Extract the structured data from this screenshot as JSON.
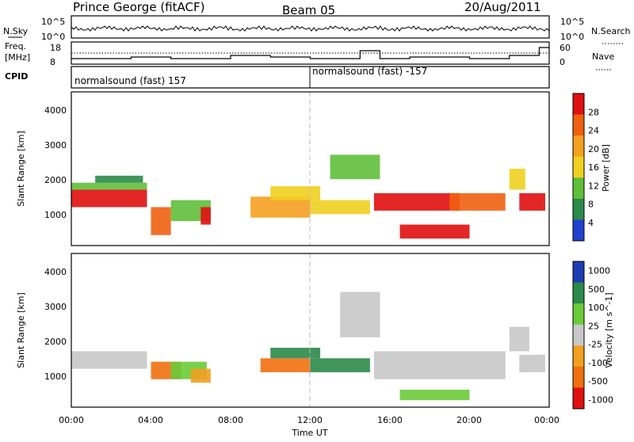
{
  "header": {
    "station": "Prince George (fitACF)",
    "beam": "Beam 05",
    "date": "20/Aug/2011"
  },
  "top_panels": {
    "nsky_label": "N.Sky",
    "nsky_ticks": [
      "10^5",
      "10^0"
    ],
    "nsearch_label": "N.Search",
    "nsearch_ticks": [
      "10^5",
      "10^0"
    ],
    "freq_label": "Freq.",
    "freq_unit": "[MHz]",
    "freq_ticks": [
      "18",
      "8"
    ],
    "nave_label": "Nave",
    "nave_ticks": [
      "60",
      "0"
    ],
    "cpid_label": "CPID",
    "cpid_segments": [
      "normalsound (fast) 157",
      "normalsound (fast) -157"
    ]
  },
  "x_axis": {
    "label": "Time UT",
    "ticks": [
      "00:00",
      "04:00",
      "08:00",
      "12:00",
      "16:00",
      "20:00",
      "00:00"
    ]
  },
  "colors": {
    "power": [
      "#2040d0",
      "#2a8a4a",
      "#5fbf3a",
      "#f0d020",
      "#f5a020",
      "#f06010",
      "#e01010"
    ],
    "velocity": [
      "#1e3cb4",
      "#2b8a4a",
      "#6acb3a",
      "#c8c8c8",
      "#f0a020",
      "#f07010",
      "#e01010"
    ]
  },
  "chart_data": [
    {
      "type": "heatmap",
      "name": "Power",
      "ylabel": "Slant Range [km]",
      "xlabel": "",
      "yticks": [
        "1000",
        "2000",
        "3000",
        "4000"
      ],
      "ylim": [
        200,
        4600
      ],
      "xlim_hours": [
        0,
        24
      ],
      "colorbar_label": "Power [dB]",
      "colorbar_ticks": [
        "4",
        "8",
        "12",
        "16",
        "20",
        "24",
        "28"
      ],
      "bands": [
        {
          "t0": 0.0,
          "t1": 3.8,
          "r0": 1300,
          "r1": 1800,
          "level": 6
        },
        {
          "t0": 0.0,
          "t1": 3.8,
          "r0": 1800,
          "r1": 2000,
          "level": 2
        },
        {
          "t0": 1.2,
          "t1": 3.6,
          "r0": 2000,
          "r1": 2200,
          "level": 1
        },
        {
          "t0": 4.0,
          "t1": 5.0,
          "r0": 500,
          "r1": 1300,
          "level": 5
        },
        {
          "t0": 5.0,
          "t1": 7.0,
          "r0": 900,
          "r1": 1500,
          "level": 2
        },
        {
          "t0": 6.5,
          "t1": 7.0,
          "r0": 800,
          "r1": 1300,
          "level": 6
        },
        {
          "t0": 9.0,
          "t1": 12.0,
          "r0": 1000,
          "r1": 1600,
          "level": 4
        },
        {
          "t0": 10.0,
          "t1": 12.5,
          "r0": 1500,
          "r1": 1900,
          "level": 3
        },
        {
          "t0": 12.0,
          "t1": 15.0,
          "r0": 1100,
          "r1": 1500,
          "level": 3
        },
        {
          "t0": 13.0,
          "t1": 15.5,
          "r0": 2100,
          "r1": 2800,
          "level": 2
        },
        {
          "t0": 15.2,
          "t1": 19.5,
          "r0": 1200,
          "r1": 1700,
          "level": 6
        },
        {
          "t0": 16.5,
          "t1": 20.0,
          "r0": 400,
          "r1": 800,
          "level": 6
        },
        {
          "t0": 19.0,
          "t1": 21.8,
          "r0": 1200,
          "r1": 1700,
          "level": 5
        },
        {
          "t0": 22.0,
          "t1": 22.8,
          "r0": 1800,
          "r1": 2400,
          "level": 3
        },
        {
          "t0": 22.5,
          "t1": 23.8,
          "r0": 1200,
          "r1": 1700,
          "level": 6
        }
      ]
    },
    {
      "type": "heatmap",
      "name": "Velocity",
      "ylabel": "Slant Range [km]",
      "xlabel": "Time UT",
      "yticks": [
        "1000",
        "2000",
        "3000",
        "4000"
      ],
      "ylim": [
        200,
        4600
      ],
      "xlim_hours": [
        0,
        24
      ],
      "colorbar_label": "Velocity [m s^-1]",
      "colorbar_ticks": [
        "1000",
        "500",
        "100",
        "25",
        "-25",
        "-100",
        "-500",
        "-1000"
      ],
      "bands": [
        {
          "t0": 0.0,
          "t1": 3.8,
          "r0": 1300,
          "r1": 1800,
          "level": 3
        },
        {
          "t0": 4.0,
          "t1": 5.5,
          "r0": 1000,
          "r1": 1500,
          "level": 5
        },
        {
          "t0": 5.0,
          "t1": 6.8,
          "r0": 1000,
          "r1": 1500,
          "level": 2
        },
        {
          "t0": 6.0,
          "t1": 7.0,
          "r0": 900,
          "r1": 1300,
          "level": 4
        },
        {
          "t0": 9.5,
          "t1": 12.0,
          "r0": 1200,
          "r1": 1600,
          "level": 5
        },
        {
          "t0": 10.0,
          "t1": 12.5,
          "r0": 1600,
          "r1": 1900,
          "level": 1
        },
        {
          "t0": 12.0,
          "t1": 15.0,
          "r0": 1200,
          "r1": 1600,
          "level": 1
        },
        {
          "t0": 13.5,
          "t1": 15.5,
          "r0": 2200,
          "r1": 3500,
          "level": 3
        },
        {
          "t0": 15.2,
          "t1": 21.8,
          "r0": 1000,
          "r1": 1800,
          "level": 3
        },
        {
          "t0": 16.5,
          "t1": 20.0,
          "r0": 400,
          "r1": 700,
          "level": 2
        },
        {
          "t0": 22.0,
          "t1": 23.0,
          "r0": 1800,
          "r1": 2500,
          "level": 3
        },
        {
          "t0": 22.5,
          "t1": 23.8,
          "r0": 1200,
          "r1": 1700,
          "level": 3
        }
      ]
    }
  ]
}
